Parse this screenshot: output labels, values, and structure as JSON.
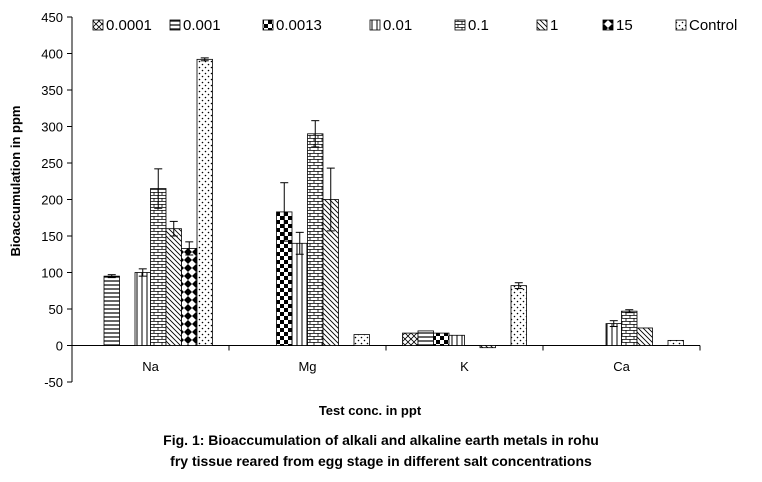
{
  "chart_data": {
    "type": "bar",
    "xlabel": "Test conc. in ppt",
    "ylabel": "Bioaccumulation in ppm",
    "ylim": [
      -50,
      450
    ],
    "yticks": [
      -50,
      0,
      50,
      100,
      150,
      200,
      250,
      300,
      350,
      400,
      450
    ],
    "categories": [
      "Na",
      "Mg",
      "K",
      "Ca"
    ],
    "legend_position": "top",
    "series": [
      {
        "name": "0.0001",
        "pattern": "hatch-cross",
        "values": [
          null,
          null,
          17,
          null
        ],
        "errors": [
          0,
          0,
          0,
          0
        ]
      },
      {
        "name": "0.001",
        "pattern": "hlines",
        "values": [
          95,
          null,
          20,
          null
        ],
        "errors": [
          2,
          0,
          0,
          0
        ]
      },
      {
        "name": "0.0013",
        "pattern": "checker",
        "values": [
          null,
          183,
          17,
          null
        ],
        "errors": [
          0,
          40,
          0,
          0
        ]
      },
      {
        "name": "0.01",
        "pattern": "vlines",
        "values": [
          100,
          140,
          14,
          30
        ],
        "errors": [
          5,
          15,
          0,
          4
        ]
      },
      {
        "name": "0.1",
        "pattern": "bricks",
        "values": [
          215,
          290,
          null,
          47
        ],
        "errors": [
          27,
          18,
          0,
          2
        ]
      },
      {
        "name": "1",
        "pattern": "diag",
        "values": [
          160,
          200,
          -3,
          24
        ],
        "errors": [
          10,
          43,
          0,
          0
        ]
      },
      {
        "name": "15",
        "pattern": "diamonds",
        "values": [
          133,
          null,
          null,
          null
        ],
        "errors": [
          9,
          0,
          0,
          0
        ]
      },
      {
        "name": "Control",
        "pattern": "dots",
        "values": [
          392,
          15,
          82,
          7
        ],
        "errors": [
          2,
          0,
          4,
          0
        ]
      }
    ]
  },
  "caption": {
    "line1": "Fig. 1: Bioaccumulation of alkali and alkaline earth metals in rohu",
    "line2": "fry tissue reared from egg stage in different salt concentrations"
  }
}
